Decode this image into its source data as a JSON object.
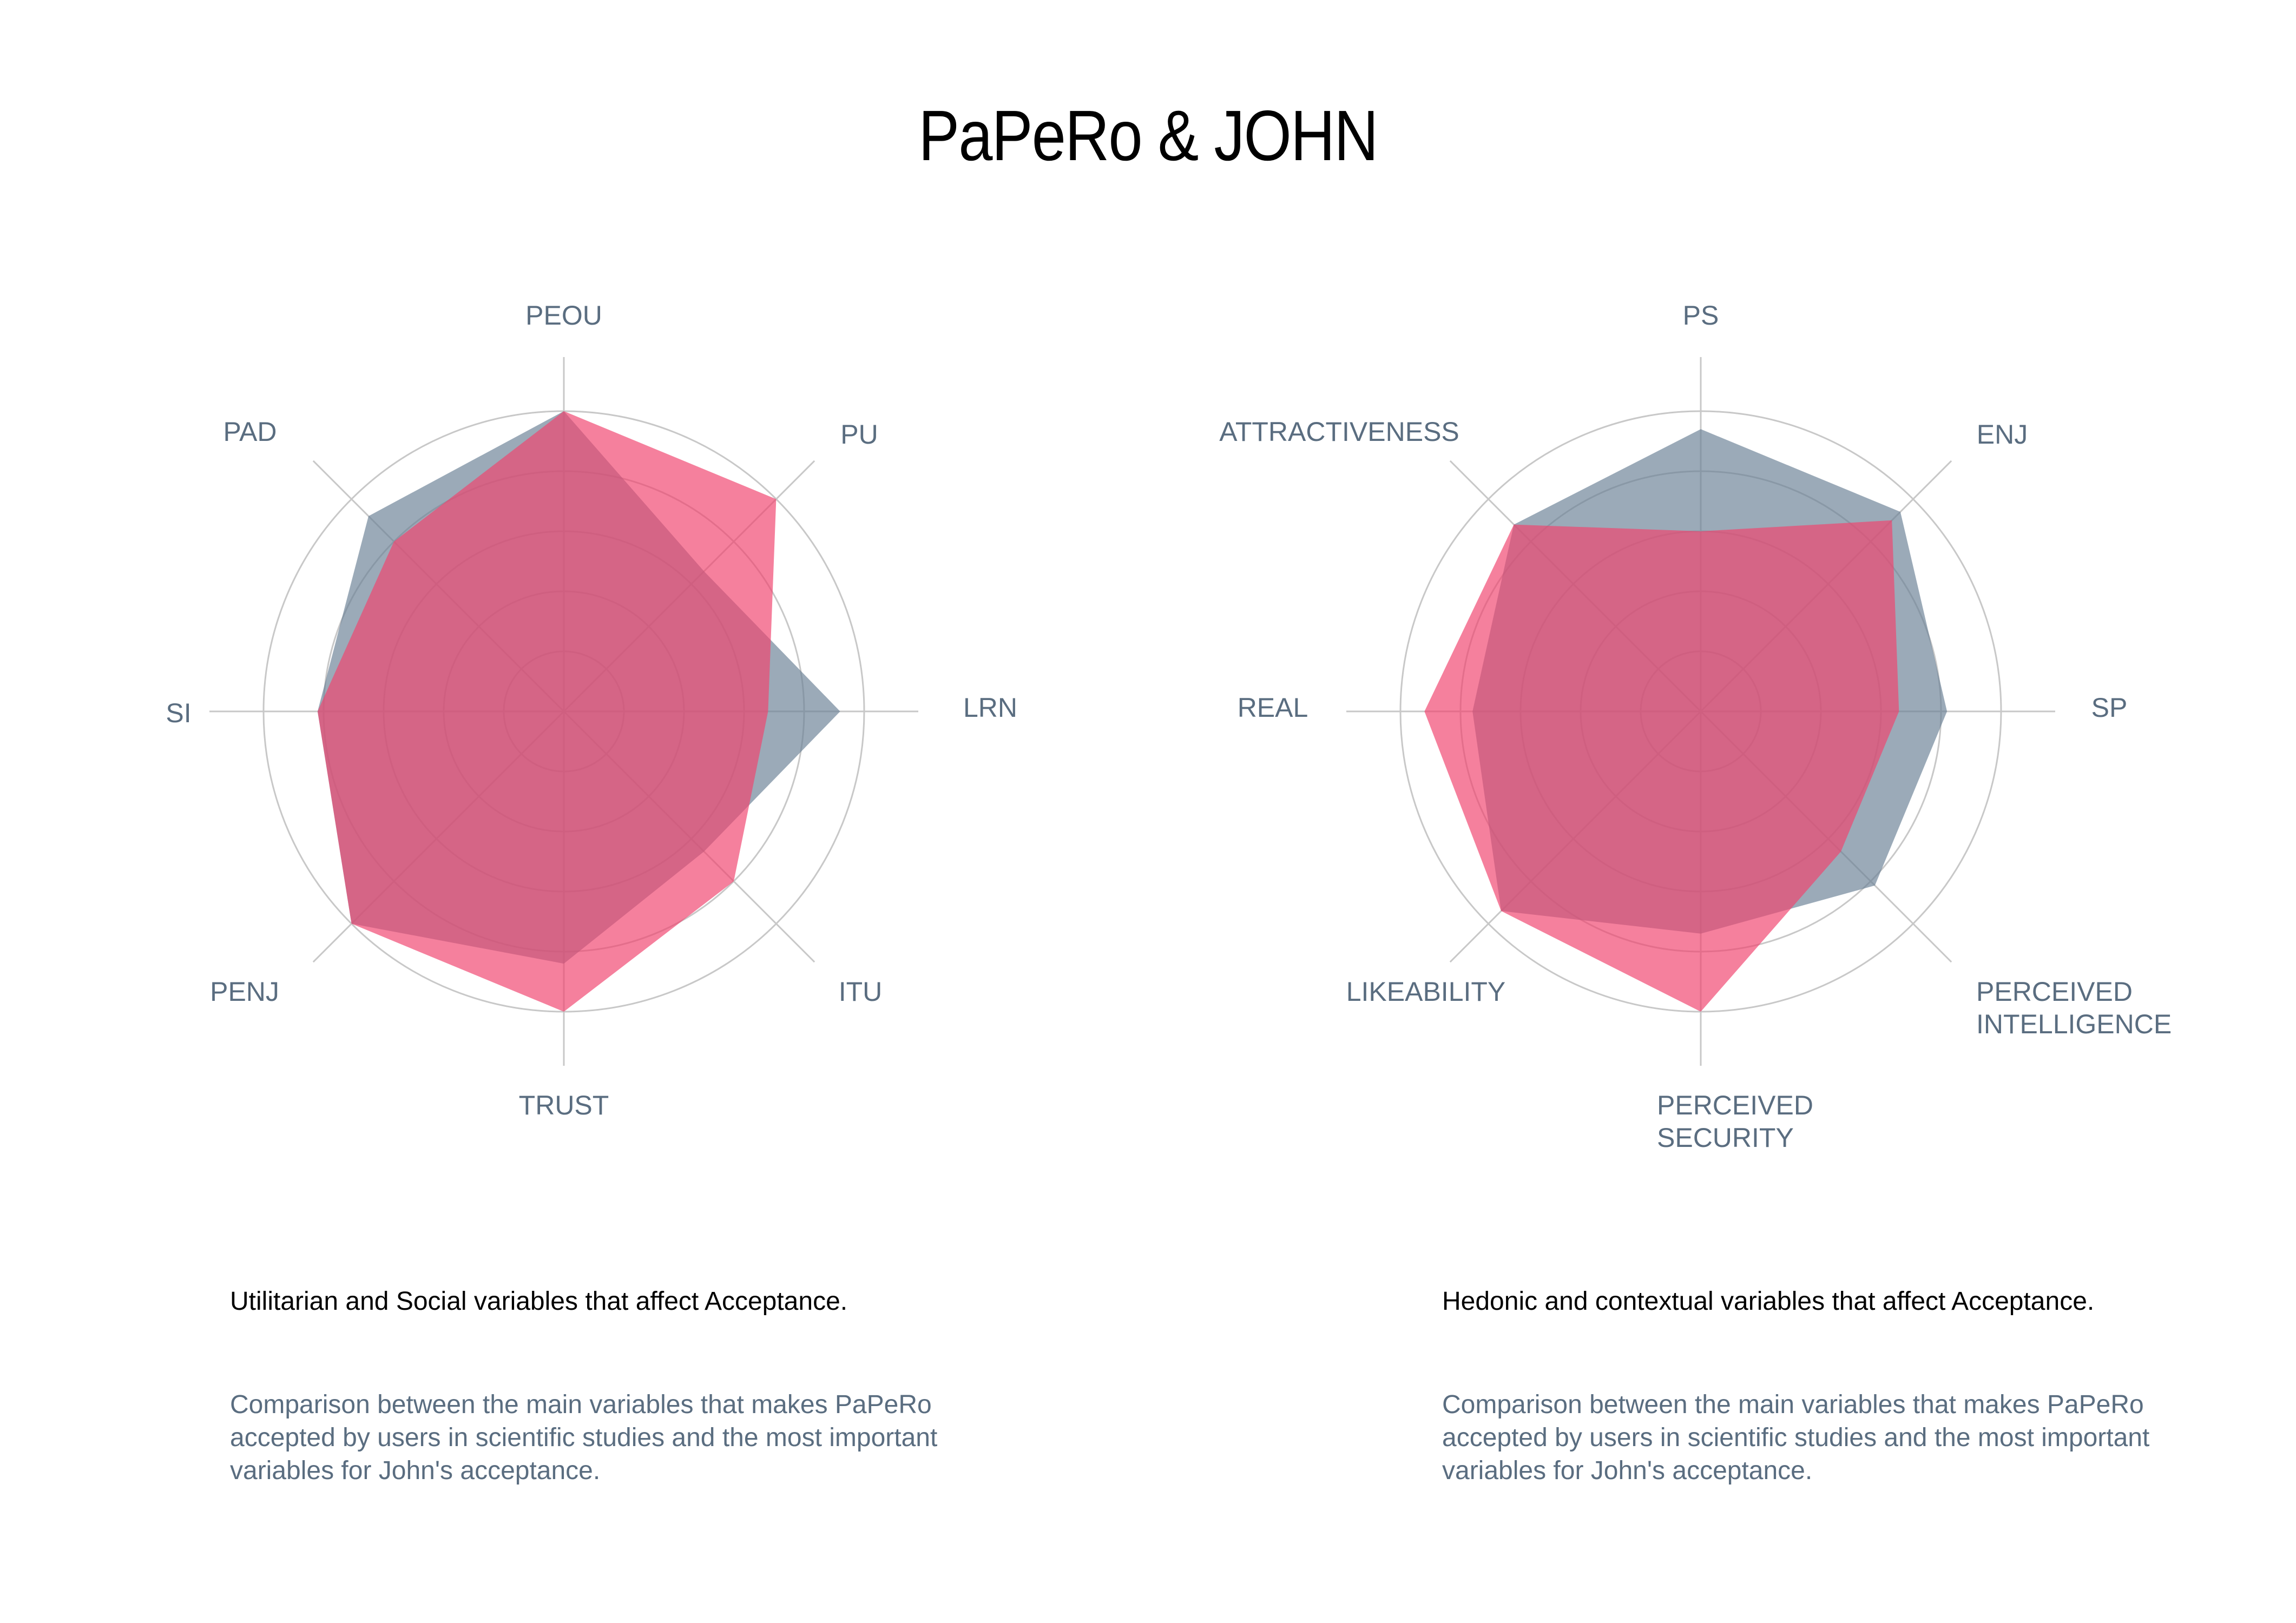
{
  "title": "PaPeRo & JOHN",
  "colors": {
    "papero": "#6b8296",
    "john": "#f0446e",
    "grid": "#c8c8c8",
    "label": "#5a6d80"
  },
  "chart_data": [
    {
      "type": "radar",
      "axes": [
        "PEOU",
        "PU",
        "LRN",
        "ITU",
        "TRUST",
        "PENJ",
        "SI",
        "PAD"
      ],
      "rmax": 5,
      "rings": [
        1,
        2,
        3,
        4,
        5
      ],
      "series": [
        {
          "color": "#6b8296",
          "values": [
            5.0,
            3.3,
            4.6,
            3.3,
            4.2,
            5.0,
            4.1,
            4.6
          ]
        },
        {
          "color": "#f0446e",
          "values": [
            5.0,
            5.0,
            3.4,
            4.0,
            5.0,
            5.0,
            4.1,
            4.0
          ]
        }
      ],
      "caption_title": "Utilitarian and Social variables that affect Acceptance.",
      "caption_body": "Comparison between the main variables that makes PaPeRo accepted by users in scientific studies and the most important variables for John's acceptance."
    },
    {
      "type": "radar",
      "axes": [
        "PS",
        "ENJ",
        "SP",
        "PERCEIVED INTELLIGENCE",
        "PERCEIVED SECURITY",
        "LIKEABILITY",
        "REAL",
        "ATTRACTIVENESS"
      ],
      "axis_label_lines": [
        [
          "PS"
        ],
        [
          "ENJ"
        ],
        [
          "SP"
        ],
        [
          "PERCEIVED",
          "INTELLIGENCE"
        ],
        [
          "PERCEIVED",
          "SECURITY"
        ],
        [
          "LIKEABILITY"
        ],
        [
          "REAL"
        ],
        [
          "ATTRACTIVENESS"
        ]
      ],
      "rmax": 5,
      "rings": [
        1,
        2,
        3,
        4,
        5
      ],
      "series": [
        {
          "color": "#6b8296",
          "values": [
            4.7,
            4.7,
            4.1,
            4.1,
            3.7,
            4.7,
            3.8,
            4.4
          ]
        },
        {
          "color": "#f0446e",
          "values": [
            3.0,
            4.5,
            3.3,
            3.3,
            5.0,
            4.7,
            4.6,
            4.4
          ]
        }
      ],
      "caption_title": "Hedonic and contextual variables that affect Acceptance.",
      "caption_body": "Comparison between the main variables that makes PaPeRo accepted by users in scientific studies and the most important variables for John's acceptance."
    }
  ]
}
